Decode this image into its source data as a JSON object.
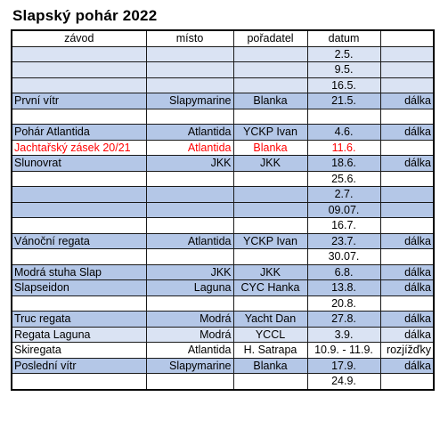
{
  "title": "Slapský pohár 2022",
  "headers": [
    "závod",
    "místo",
    "pořadatel",
    "datum",
    ""
  ],
  "rows": [
    {
      "style": "light",
      "race": "",
      "place": "",
      "organizer": "",
      "date": "2.5.",
      "note": ""
    },
    {
      "style": "light",
      "race": "",
      "place": "",
      "organizer": "",
      "date": "9.5.",
      "note": ""
    },
    {
      "style": "light",
      "race": "",
      "place": "",
      "organizer": "",
      "date": "16.5.",
      "note": ""
    },
    {
      "style": "blue",
      "race": "První vítr",
      "place": "Slapymarine",
      "organizer": "Blanka",
      "date": "21.5.",
      "note": "dálka"
    },
    {
      "style": "white",
      "race": "",
      "place": "",
      "organizer": "",
      "date": "",
      "note": ""
    },
    {
      "style": "blue",
      "race": " Pohár Atlantida",
      "place": "Atlantida",
      "organizer": "YCKP Ivan",
      "date": "4.6.",
      "note": "dálka"
    },
    {
      "style": "white red",
      "race": "Jachtařský zásek 20/21",
      "place": "Atlantida",
      "organizer": "Blanka",
      "date": "11.6.",
      "note": ""
    },
    {
      "style": "blue",
      "race": "Slunovrat",
      "place": "JKK",
      "organizer": "JKK",
      "date": "18.6.",
      "note": "dálka"
    },
    {
      "style": "white",
      "race": "",
      "place": "",
      "organizer": "",
      "date": "25.6.",
      "note": ""
    },
    {
      "style": "blue",
      "race": "",
      "place": "",
      "organizer": "",
      "date": "2.7.",
      "note": ""
    },
    {
      "style": "blue",
      "race": "",
      "place": "",
      "organizer": "",
      "date": "09.07.",
      "note": ""
    },
    {
      "style": "white",
      "race": "",
      "place": "",
      "organizer": "",
      "date": "16.7.",
      "note": ""
    },
    {
      "style": "blue",
      "race": "Vánoční regata",
      "place": "Atlantida",
      "organizer": "YCKP Ivan",
      "date": "23.7.",
      "note": "dálka"
    },
    {
      "style": "white",
      "race": "",
      "place": "",
      "organizer": "",
      "date": "30.07.",
      "note": ""
    },
    {
      "style": "blue",
      "race": "Modrá stuha Slap",
      "place": "JKK",
      "organizer": "JKK",
      "date": "6.8.",
      "note": "dálka"
    },
    {
      "style": "blue",
      "race": "Slapseidon",
      "place": "Laguna",
      "organizer": "CYC Hanka",
      "date": "13.8.",
      "note": "dálka"
    },
    {
      "style": "white",
      "race": "",
      "place": "",
      "organizer": "",
      "date": "20.8.",
      "note": ""
    },
    {
      "style": "blue",
      "race": "Truc regata",
      "place": "Modrá",
      "organizer": "Yacht Dan",
      "date": "27.8.",
      "note": "dálka"
    },
    {
      "style": "light",
      "race": "Regata Laguna",
      "place": "Modrá",
      "organizer": "YCCL",
      "date": "3.9.",
      "note": "dálka"
    },
    {
      "style": "white",
      "race": "Skiregata",
      "place": "Atlantida",
      "organizer": "H. Satrapa",
      "date": "10.9. - 11.9.",
      "note": "rozjížďky"
    },
    {
      "style": "blue",
      "race": "Poslední vítr",
      "place": "Slapymarine",
      "organizer": "Blanka",
      "date": "17.9.",
      "note": "dálka"
    },
    {
      "style": "white",
      "race": "",
      "place": "",
      "organizer": "",
      "date": "24.9.",
      "note": ""
    }
  ],
  "colors": {
    "blue": "#b4c7e7",
    "light": "#dae3f3",
    "red": "#ff0000"
  }
}
